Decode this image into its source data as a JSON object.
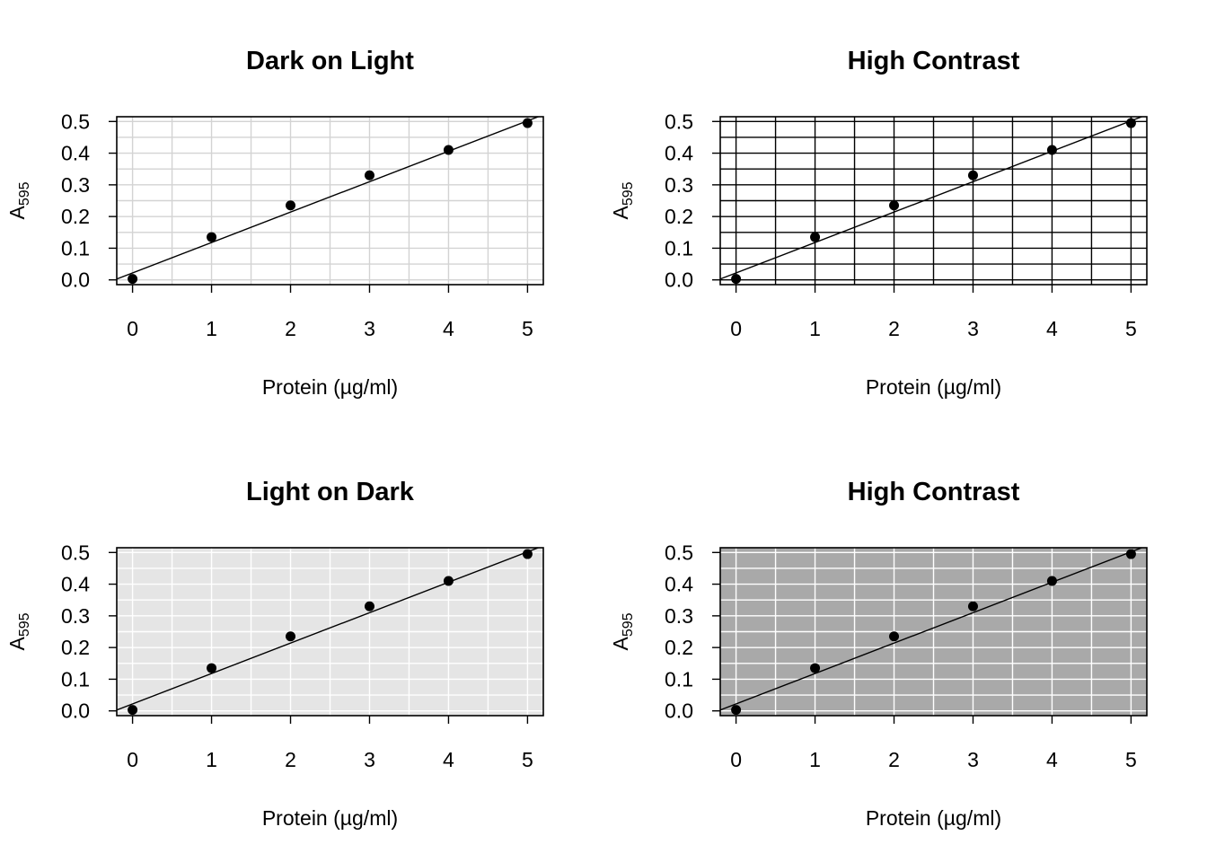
{
  "chart_data": [
    {
      "type": "scatter",
      "title": "Dark on Light",
      "xlabel": "Protein (µg/ml)",
      "ylabel": {
        "base": "A",
        "subscript": "595"
      },
      "x": [
        0,
        1,
        2,
        3,
        4,
        5
      ],
      "y": [
        0.003,
        0.135,
        0.235,
        0.33,
        0.41,
        0.495
      ],
      "fit_line": {
        "intercept": 0.022,
        "slope": 0.096
      },
      "xlim": [
        -0.2,
        5.2
      ],
      "ylim": [
        -0.015,
        0.515
      ],
      "x_ticks": [
        "0",
        "1",
        "2",
        "3",
        "4",
        "5"
      ],
      "y_ticks": [
        "0.0",
        "0.1",
        "0.2",
        "0.3",
        "0.4",
        "0.5"
      ],
      "grid": "on",
      "colors": {
        "panel_bg": "#ffffff",
        "grid": "#d3d3d3",
        "points": "#000000"
      }
    },
    {
      "type": "scatter",
      "title": "High Contrast",
      "xlabel": "Protein (µg/ml)",
      "ylabel": {
        "base": "A",
        "subscript": "595"
      },
      "x": [
        0,
        1,
        2,
        3,
        4,
        5
      ],
      "y": [
        0.003,
        0.135,
        0.235,
        0.33,
        0.41,
        0.495
      ],
      "fit_line": {
        "intercept": 0.022,
        "slope": 0.096
      },
      "xlim": [
        -0.2,
        5.2
      ],
      "ylim": [
        -0.015,
        0.515
      ],
      "x_ticks": [
        "0",
        "1",
        "2",
        "3",
        "4",
        "5"
      ],
      "y_ticks": [
        "0.0",
        "0.1",
        "0.2",
        "0.3",
        "0.4",
        "0.5"
      ],
      "grid": "on",
      "colors": {
        "panel_bg": "#ffffff",
        "grid": "#000000",
        "points": "#000000"
      }
    },
    {
      "type": "scatter",
      "title": "Light on Dark",
      "xlabel": "Protein (µg/ml)",
      "ylabel": {
        "base": "A",
        "subscript": "595"
      },
      "x": [
        0,
        1,
        2,
        3,
        4,
        5
      ],
      "y": [
        0.003,
        0.135,
        0.235,
        0.33,
        0.41,
        0.495
      ],
      "fit_line": {
        "intercept": 0.022,
        "slope": 0.096
      },
      "xlim": [
        -0.2,
        5.2
      ],
      "ylim": [
        -0.015,
        0.515
      ],
      "x_ticks": [
        "0",
        "1",
        "2",
        "3",
        "4",
        "5"
      ],
      "y_ticks": [
        "0.0",
        "0.1",
        "0.2",
        "0.3",
        "0.4",
        "0.5"
      ],
      "grid": "on",
      "colors": {
        "panel_bg": "#e5e5e5",
        "grid": "#ffffff",
        "points": "#000000"
      }
    },
    {
      "type": "scatter",
      "title": "High Contrast",
      "xlabel": "Protein (µg/ml)",
      "ylabel": {
        "base": "A",
        "subscript": "595"
      },
      "x": [
        0,
        1,
        2,
        3,
        4,
        5
      ],
      "y": [
        0.003,
        0.135,
        0.235,
        0.33,
        0.41,
        0.495
      ],
      "fit_line": {
        "intercept": 0.022,
        "slope": 0.096
      },
      "xlim": [
        -0.2,
        5.2
      ],
      "ylim": [
        -0.015,
        0.515
      ],
      "x_ticks": [
        "0",
        "1",
        "2",
        "3",
        "4",
        "5"
      ],
      "y_ticks": [
        "0.0",
        "0.1",
        "0.2",
        "0.3",
        "0.4",
        "0.5"
      ],
      "grid": "on",
      "colors": {
        "panel_bg": "#a9a9a9",
        "grid": "#ffffff",
        "points": "#000000"
      }
    }
  ]
}
